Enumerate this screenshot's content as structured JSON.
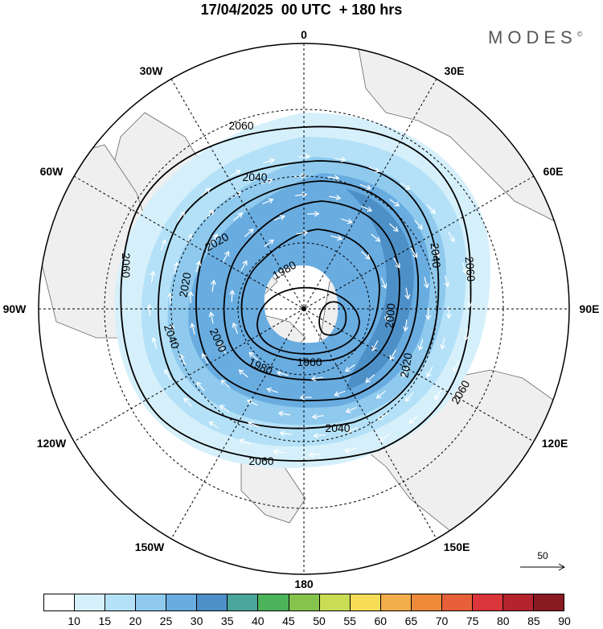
{
  "title": "17/04/2025  00 UTC  + 180 hrs",
  "brand": "MODES",
  "brand_mark": "©",
  "longitude_labels": [
    "0",
    "30E",
    "60E",
    "90E",
    "120E",
    "150E",
    "180",
    "150W",
    "120W",
    "90W",
    "60W",
    "30W"
  ],
  "contour_labels": [
    "2060",
    "2040",
    "2020",
    "2000",
    "1980",
    "1960"
  ],
  "reference_vector": {
    "label": "50"
  },
  "colorbar": {
    "ticks": [
      "10",
      "15",
      "20",
      "25",
      "30",
      "35",
      "40",
      "45",
      "50",
      "55",
      "60",
      "65",
      "70",
      "75",
      "80",
      "85",
      "90"
    ],
    "colors": [
      "#ffffff",
      "#d6f0fb",
      "#b4e1f7",
      "#8fcaee",
      "#69ace0",
      "#4d90c8",
      "#4aa59a",
      "#4cb35a",
      "#86c34c",
      "#c9dc55",
      "#f6dc57",
      "#f2ae4a",
      "#ee8a3a",
      "#e8603a",
      "#d9353a",
      "#b4232e",
      "#8a1a22"
    ]
  },
  "colors": {
    "land": "#efefef",
    "contour": "#000000",
    "wind_arrows": "#ffffff",
    "grid": "#000000"
  }
}
